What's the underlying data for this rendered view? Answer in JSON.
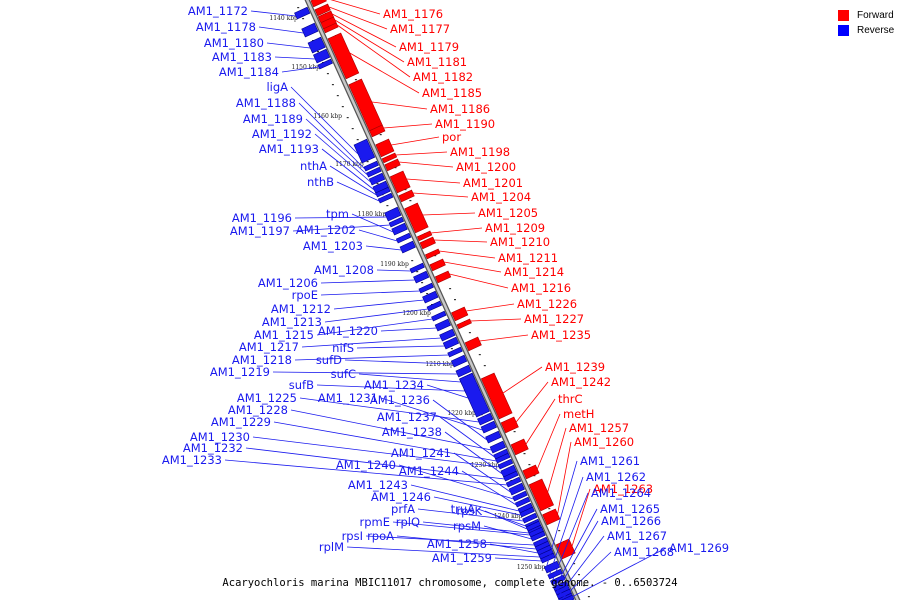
{
  "caption": "Acaryochloris marina MBIC11017 chromosome, complete genome. - 0..6503724",
  "legend": [
    {
      "label": "Forward",
      "color": "#ff0000"
    },
    {
      "label": "Reverse",
      "color": "#0000ff"
    }
  ],
  "colors": {
    "forward": "#ff0000",
    "reverse": "#1a1aee",
    "axis": "#999999",
    "axis_edge": "#555555"
  },
  "scale_ticks": [
    "1140 kbp",
    "1150 kbp",
    "1160 kbp",
    "1170 kbp",
    "1180 kbp",
    "1190 kbp",
    "1200 kbp",
    "1210 kbp",
    "1220 kbp",
    "1230 kbp",
    "1240 kbp",
    "1250 kbp"
  ],
  "forward_genes": [
    "AM1_1176",
    "AM1_1177",
    "AM1_1179",
    "AM1_1181",
    "AM1_1182",
    "AM1_1185",
    "AM1_1186",
    "AM1_1190",
    "por",
    "AM1_1198",
    "AM1_1200",
    "AM1_1201",
    "AM1_1204",
    "AM1_1205",
    "AM1_1209",
    "AM1_1210",
    "AM1_1211",
    "AM1_1214",
    "AM1_1216",
    "AM1_1226",
    "AM1_1227",
    "AM1_1235",
    "AM1_1239",
    "AM1_1242",
    "thrC",
    "metH",
    "AM1_1257",
    "AM1_1260",
    "AM1_1263"
  ],
  "reverse_genes": [
    "AM1_1172",
    "AM1_1178",
    "AM1_1180",
    "AM1_1183",
    "AM1_1184",
    "ligA",
    "AM1_1188",
    "AM1_1189",
    "AM1_1192",
    "AM1_1193",
    "nthA",
    "nthB",
    "AM1_1196",
    "AM1_1197",
    "tpm",
    "AM1_1202",
    "AM1_1203",
    "AM1_1208",
    "AM1_1206",
    "rpoE",
    "AM1_1212",
    "AM1_1213",
    "AM1_1215",
    "AM1_1220",
    "AM1_1217",
    "nifS",
    "AM1_1218",
    "sufD",
    "AM1_1219",
    "sufC",
    "sufB",
    "AM1_1234",
    "AM1_1225",
    "AM1_1231",
    "AM1_1236",
    "AM1_1228",
    "AM1_1237",
    "AM1_1229",
    "AM1_1230",
    "AM1_1238",
    "AM1_1232",
    "AM1_1233",
    "AM1_1241",
    "AM1_1240",
    "AM1_1244",
    "AM1_1243",
    "AM1_1246",
    "prfA",
    "truA",
    "rpsK",
    "rplQ",
    "rpmE",
    "rpsM",
    "rpsI",
    "rpoA",
    "AM1_1258",
    "rplM",
    "AM1_1259",
    "AM1_1261",
    "AM1_1262",
    "AM1_1264",
    "AM1_1265",
    "AM1_1266",
    "AM1_1267",
    "AM1_1268",
    "AM1_1269"
  ]
}
